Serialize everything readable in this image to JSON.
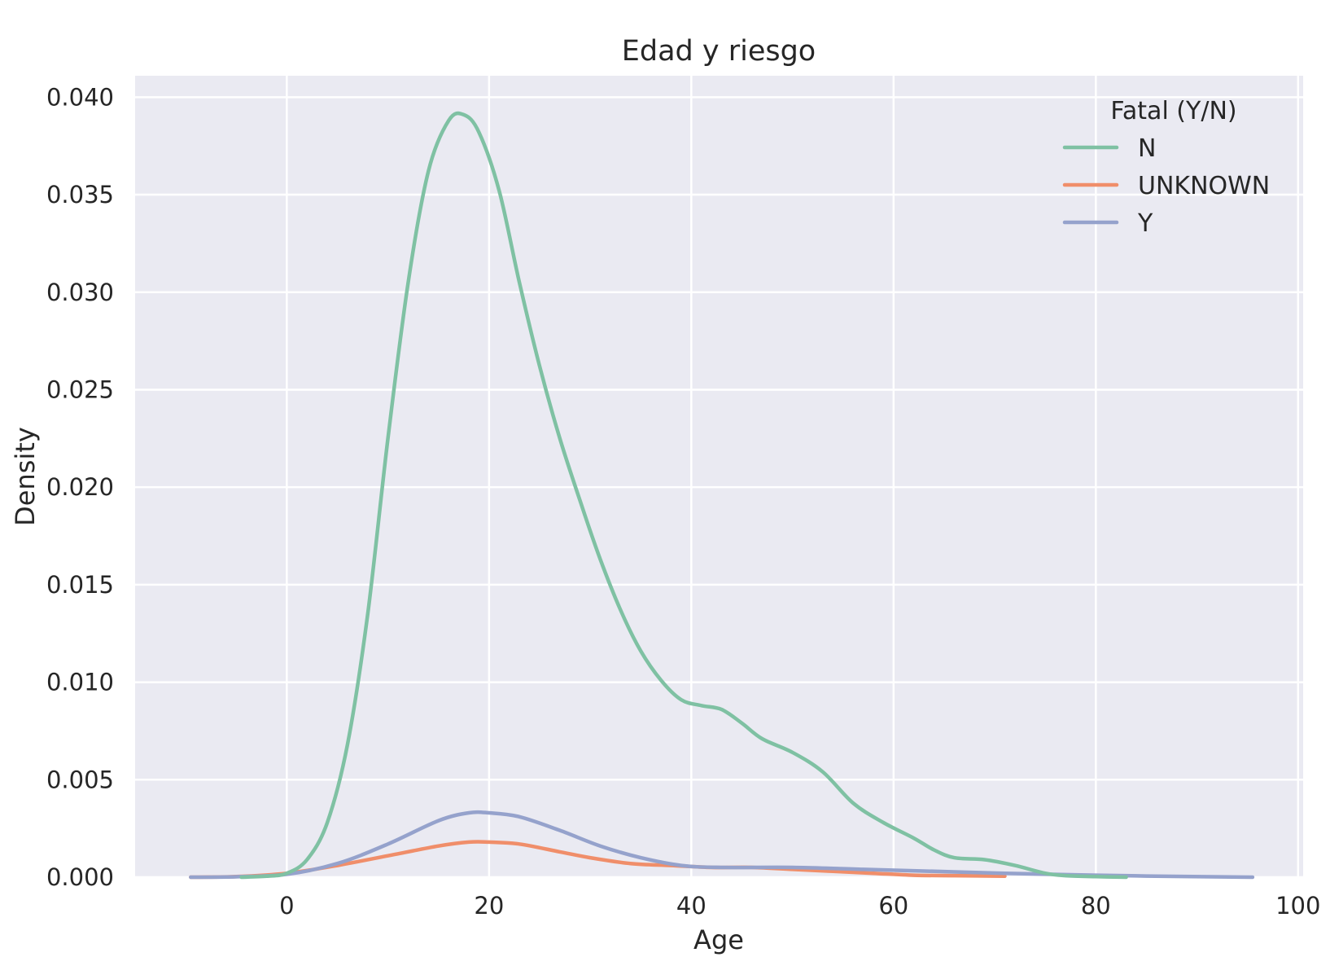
{
  "chart_data": {
    "type": "line",
    "title": "Edad y riesgo",
    "xlabel": "Age",
    "ylabel": "Density",
    "xlim": [
      -15,
      100.5
    ],
    "ylim": [
      0,
      0.0411
    ],
    "x_ticks": [
      0,
      20,
      40,
      60,
      80,
      100
    ],
    "x_tick_labels": [
      "0",
      "20",
      "40",
      "60",
      "80",
      "100"
    ],
    "y_ticks": [
      0,
      0.005,
      0.01,
      0.015,
      0.02,
      0.025,
      0.03,
      0.035,
      0.04
    ],
    "y_tick_labels": [
      "0.000",
      "0.005",
      "0.010",
      "0.015",
      "0.020",
      "0.025",
      "0.030",
      "0.035",
      "0.040"
    ],
    "grid": true,
    "legend": {
      "title": "Fatal (Y/N)",
      "position": "top-right"
    },
    "series": [
      {
        "name": "N",
        "color": "#7fc1a3",
        "points": [
          [
            -4.5,
            0.0
          ],
          [
            -2,
            5e-05
          ],
          [
            0,
            0.0002
          ],
          [
            2,
            0.0009
          ],
          [
            4,
            0.0028
          ],
          [
            6,
            0.0068
          ],
          [
            8,
            0.0135
          ],
          [
            10,
            0.0225
          ],
          [
            12,
            0.0305
          ],
          [
            14,
            0.0362
          ],
          [
            16,
            0.0388
          ],
          [
            17.5,
            0.0391
          ],
          [
            19,
            0.0382
          ],
          [
            21,
            0.0352
          ],
          [
            23,
            0.0305
          ],
          [
            25,
            0.0262
          ],
          [
            27,
            0.0225
          ],
          [
            29,
            0.0193
          ],
          [
            31,
            0.0163
          ],
          [
            33,
            0.0137
          ],
          [
            35,
            0.0116
          ],
          [
            37,
            0.0101
          ],
          [
            39,
            0.0091
          ],
          [
            41,
            0.0088
          ],
          [
            43,
            0.0086
          ],
          [
            45,
            0.0079
          ],
          [
            47,
            0.0071
          ],
          [
            50,
            0.0064
          ],
          [
            53,
            0.0054
          ],
          [
            56,
            0.0038
          ],
          [
            59,
            0.0028
          ],
          [
            62,
            0.002
          ],
          [
            64,
            0.0014
          ],
          [
            66,
            0.001
          ],
          [
            69,
            0.0009
          ],
          [
            72,
            0.0006
          ],
          [
            75,
            0.0002
          ],
          [
            77,
            8e-05
          ],
          [
            80,
            3e-05
          ],
          [
            83,
            0.0
          ]
        ]
      },
      {
        "name": "UNKNOWN",
        "color": "#f08e6a",
        "points": [
          [
            -9.5,
            0.0
          ],
          [
            -5,
            3e-05
          ],
          [
            0,
            0.0002
          ],
          [
            5,
            0.0006
          ],
          [
            10,
            0.0011
          ],
          [
            15,
            0.0016
          ],
          [
            18,
            0.0018
          ],
          [
            20,
            0.0018
          ],
          [
            23,
            0.0017
          ],
          [
            27,
            0.0013
          ],
          [
            30,
            0.001
          ],
          [
            34,
            0.0007
          ],
          [
            38,
            0.0006
          ],
          [
            42,
            0.0005
          ],
          [
            46,
            0.0005
          ],
          [
            50,
            0.0004
          ],
          [
            54,
            0.0003
          ],
          [
            58,
            0.0002
          ],
          [
            62,
            0.0001
          ],
          [
            66,
            8e-05
          ],
          [
            71,
            5e-05
          ]
        ]
      },
      {
        "name": "Y",
        "color": "#95a2cc",
        "points": [
          [
            -9.5,
            0.0
          ],
          [
            -5,
            2e-05
          ],
          [
            0,
            0.00015
          ],
          [
            5,
            0.0007
          ],
          [
            10,
            0.0017
          ],
          [
            15,
            0.0029
          ],
          [
            18,
            0.0033
          ],
          [
            20,
            0.0033
          ],
          [
            23,
            0.0031
          ],
          [
            27,
            0.0024
          ],
          [
            31,
            0.0016
          ],
          [
            35,
            0.001
          ],
          [
            39,
            0.0006
          ],
          [
            43,
            0.0005
          ],
          [
            50,
            0.0005
          ],
          [
            57,
            0.0004
          ],
          [
            64,
            0.0003
          ],
          [
            71,
            0.0002
          ],
          [
            78,
            0.00012
          ],
          [
            85,
            6e-05
          ],
          [
            95.5,
            0.0
          ]
        ]
      }
    ]
  }
}
